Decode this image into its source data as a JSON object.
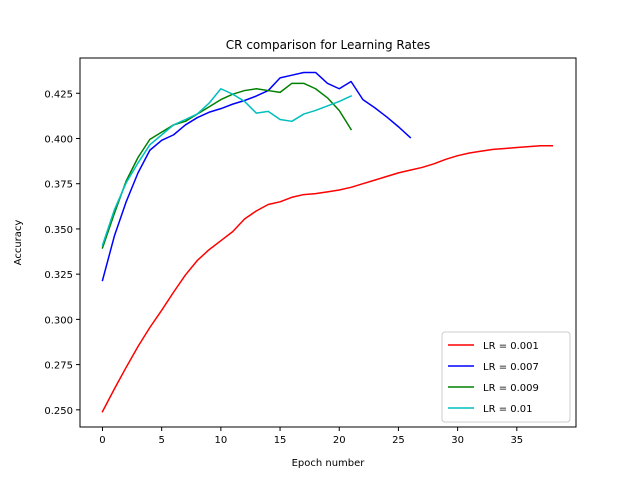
{
  "chart_data": {
    "type": "line",
    "title": "CR comparison for Learning Rates",
    "xlabel": "Epoch number",
    "ylabel": "Accuracy",
    "xlim": [
      -1.9,
      40.0
    ],
    "ylim": [
      0.2405,
      0.4445
    ],
    "xticks": [
      0,
      5,
      10,
      15,
      20,
      25,
      30,
      35
    ],
    "yticks": [
      0.25,
      0.275,
      0.3,
      0.325,
      0.35,
      0.375,
      0.4,
      0.425
    ],
    "ytick_labels": [
      "0.250",
      "0.275",
      "0.300",
      "0.325",
      "0.350",
      "0.375",
      "0.400",
      "0.425"
    ],
    "grid": false,
    "legend_position": "lower-right",
    "series": [
      {
        "name": "LR = 0.001",
        "color": "#ff0000",
        "x": [
          0,
          1,
          2,
          3,
          4,
          5,
          6,
          7,
          8,
          9,
          10,
          11,
          12,
          13,
          14,
          15,
          16,
          17,
          18,
          19,
          20,
          21,
          22,
          23,
          24,
          25,
          26,
          27,
          28,
          29,
          30,
          31,
          32,
          33,
          34,
          35,
          36,
          37,
          38
        ],
        "y": [
          0.249,
          0.2615,
          0.2735,
          0.285,
          0.2955,
          0.305,
          0.315,
          0.3245,
          0.3325,
          0.3385,
          0.3435,
          0.3485,
          0.3555,
          0.36,
          0.3635,
          0.365,
          0.3675,
          0.369,
          0.3695,
          0.3705,
          0.3715,
          0.373,
          0.375,
          0.377,
          0.379,
          0.381,
          0.3825,
          0.384,
          0.386,
          0.3885,
          0.3905,
          0.392,
          0.393,
          0.394,
          0.3945,
          0.395,
          0.3955,
          0.396,
          0.396
        ]
      },
      {
        "name": "LR = 0.007",
        "color": "#0000ff",
        "x": [
          0,
          1,
          2,
          3,
          4,
          5,
          6,
          7,
          8,
          9,
          10,
          11,
          12,
          13,
          14,
          15,
          16,
          17,
          18,
          19,
          20,
          21,
          22,
          23,
          24,
          25,
          26
        ],
        "y": [
          0.3215,
          0.346,
          0.365,
          0.381,
          0.3935,
          0.399,
          0.402,
          0.4075,
          0.4115,
          0.4145,
          0.4165,
          0.419,
          0.421,
          0.4235,
          0.4265,
          0.4335,
          0.435,
          0.4365,
          0.4365,
          0.4305,
          0.4275,
          0.4315,
          0.4215,
          0.417,
          0.412,
          0.4065,
          0.4005
        ]
      },
      {
        "name": "LR = 0.009",
        "color": "#008000",
        "x": [
          0,
          1,
          2,
          3,
          4,
          5,
          6,
          7,
          8,
          9,
          10,
          11,
          12,
          13,
          14,
          15,
          16,
          17,
          18,
          19,
          20,
          21
        ],
        "y": [
          0.3395,
          0.3585,
          0.3765,
          0.3895,
          0.3995,
          0.4035,
          0.4075,
          0.4095,
          0.4135,
          0.4175,
          0.4215,
          0.4245,
          0.4265,
          0.4275,
          0.4265,
          0.4255,
          0.4305,
          0.4305,
          0.4275,
          0.4225,
          0.4155,
          0.405
        ]
      },
      {
        "name": "LR = 0.01",
        "color": "#00bfbf",
        "x": [
          0,
          1,
          2,
          3,
          4,
          5,
          6,
          7,
          8,
          9,
          10,
          11,
          12,
          13,
          14,
          15,
          16,
          17,
          18,
          19,
          20,
          21
        ],
        "y": [
          0.341,
          0.3605,
          0.3755,
          0.3865,
          0.3965,
          0.402,
          0.4075,
          0.4105,
          0.4135,
          0.4195,
          0.4275,
          0.4245,
          0.4205,
          0.414,
          0.415,
          0.4105,
          0.4095,
          0.4135,
          0.4155,
          0.418,
          0.4205,
          0.4235
        ]
      }
    ]
  }
}
